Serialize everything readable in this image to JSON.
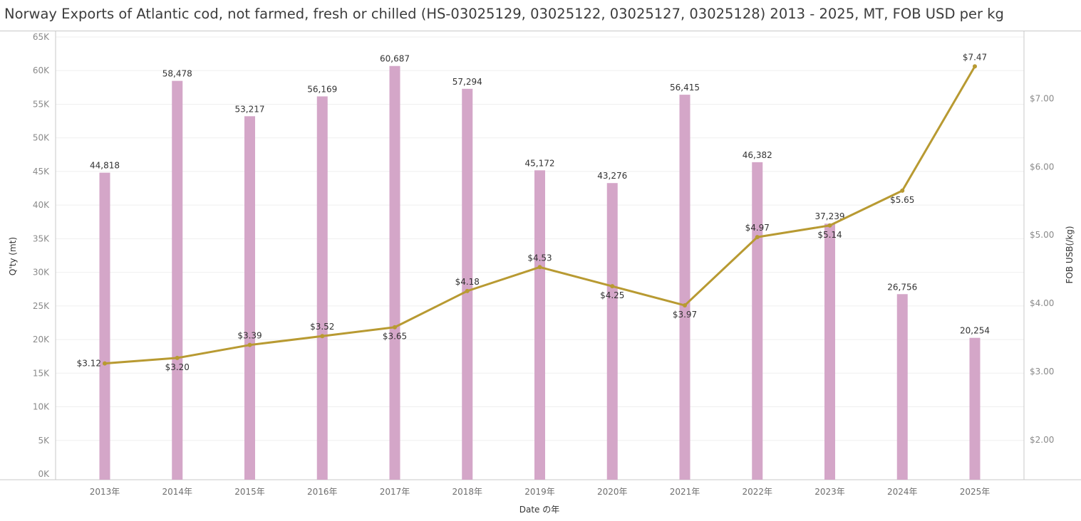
{
  "title": "Norway Exports of Atlantic cod, not farmed, fresh or chilled (HS-03025129, 03025122, 03025127, 03025128) 2013 - 2025, MT, FOB USD per kg",
  "chart_data": {
    "type": "bar",
    "title": "Norway Exports of Atlantic cod, not farmed, fresh or chilled (HS-03025129, 03025122, 03025127, 03025128) 2013 - 2025, MT, FOB USD per kg",
    "xlabel": "Date の年",
    "categories": [
      "2013年",
      "2014年",
      "2015年",
      "2016年",
      "2017年",
      "2018年",
      "2019年",
      "2020年",
      "2021年",
      "2022年",
      "2023年",
      "2024年",
      "2025年"
    ],
    "series": [
      {
        "name": "Q'ty (mt)",
        "type": "bar",
        "axis": "left",
        "color": "#d4a6c8",
        "values": [
          44818,
          58478,
          53217,
          56169,
          60687,
          57294,
          45172,
          43276,
          56415,
          46382,
          37239,
          26756,
          20254
        ],
        "labels": [
          "44,818",
          "58,478",
          "53,217",
          "56,169",
          "60,687",
          "57,294",
          "45,172",
          "43,276",
          "56,415",
          "46,382",
          "37,239",
          "26,756",
          "20,254"
        ]
      },
      {
        "name": "FOB USB(/kg)",
        "type": "line",
        "axis": "right",
        "color": "#b89a32",
        "values": [
          3.12,
          3.2,
          3.39,
          3.52,
          3.65,
          4.18,
          4.53,
          4.25,
          3.97,
          4.97,
          5.14,
          5.65,
          7.47
        ],
        "labels": [
          "$3.12",
          "$3.20",
          "$3.39",
          "$3.52",
          "$3.65",
          "$4.18",
          "$4.53",
          "$4.25",
          "$3.97",
          "$4.97",
          "$5.14",
          "$5.65",
          "$7.47"
        ],
        "label_pos": [
          "left",
          "below",
          "above",
          "above",
          "below",
          "above",
          "above",
          "below",
          "below",
          "above",
          "below",
          "below",
          "above"
        ]
      }
    ],
    "y_left": {
      "label": "Q'ty (mt)",
      "range": [
        0,
        65000
      ],
      "ticks": [
        0,
        5000,
        10000,
        15000,
        20000,
        25000,
        30000,
        35000,
        40000,
        45000,
        50000,
        55000,
        60000,
        65000
      ],
      "tick_labels": [
        "0K",
        "5K",
        "10K",
        "15K",
        "20K",
        "25K",
        "30K",
        "35K",
        "40K",
        "45K",
        "50K",
        "55K",
        "60K",
        "65K"
      ]
    },
    "y_right": {
      "label": "FOB USB(/kg)",
      "range": [
        1.5,
        7.9
      ],
      "ticks": [
        2,
        3,
        4,
        5,
        6,
        7
      ],
      "tick_labels": [
        "$2.00",
        "$3.00",
        "$4.00",
        "$5.00",
        "$6.00",
        "$7.00"
      ]
    },
    "grid": true,
    "legend": "none"
  }
}
